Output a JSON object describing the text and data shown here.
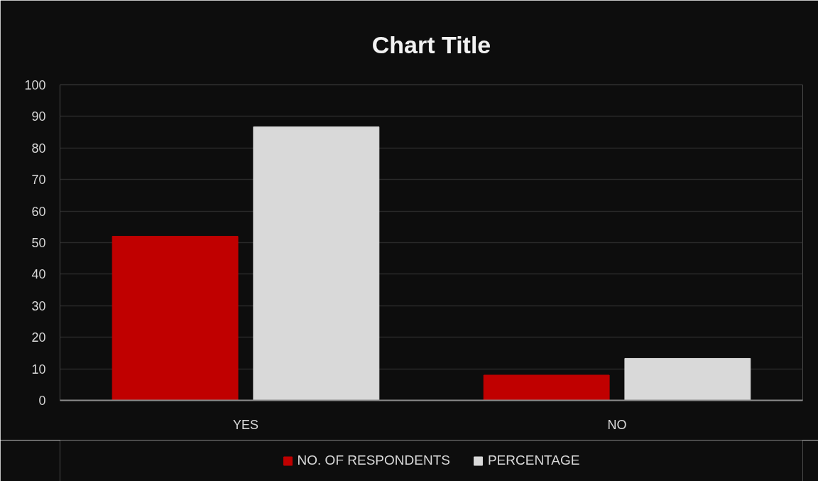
{
  "chart_data": {
    "type": "bar",
    "title": "Chart Title",
    "categories": [
      "YES",
      "NO"
    ],
    "series": [
      {
        "name": "NO. OF RESPONDENTS",
        "color": "#c00000",
        "values": [
          52,
          8
        ]
      },
      {
        "name": "PERCENTAGE",
        "color": "#d9d9d9",
        "values": [
          86.7,
          13.3
        ]
      }
    ],
    "ylim": [
      0,
      100
    ],
    "yticks": [
      0,
      10,
      20,
      30,
      40,
      50,
      60,
      70,
      80,
      90,
      100
    ],
    "grid": "y",
    "legend": "bottom"
  }
}
